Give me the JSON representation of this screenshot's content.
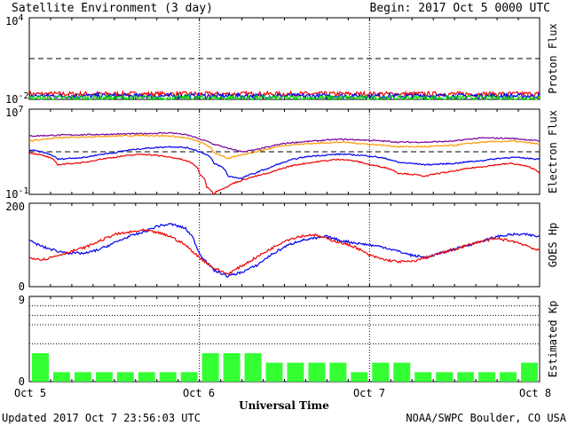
{
  "header": {
    "title": "Satellite Environment (3 day)",
    "begin": "Begin:  2017 Oct 5 0000 UTC"
  },
  "footer": {
    "updated": "Updated 2017 Oct  7 23:56:03 UTC",
    "credit": "NOAA/SWPC Boulder, CO USA",
    "xlabel": "Universal Time"
  },
  "x_ticks": [
    "Oct 5",
    "Oct 6",
    "Oct 7",
    "Oct 8"
  ],
  "colors": {
    "red": "#ee0000",
    "blue": "#0000ee",
    "green": "#00dd00",
    "purple": "#770099",
    "orange": "#ff9900",
    "kp_bar": "#33ff33"
  },
  "chart_data": [
    {
      "type": "line",
      "name": "proton",
      "ylabel": "Proton Flux",
      "scale": "log",
      "ylim": [
        0.01,
        10000
      ],
      "ytick_labels": [
        {
          "base": "10",
          "exp": "4",
          "value": 10000
        },
        {
          "base": "10",
          "exp": "-2",
          "value": 0.01
        }
      ],
      "threshold": 10,
      "series": [
        {
          "color": "red",
          "x": [
            0,
            72
          ],
          "y": [
            0.025,
            0.025
          ]
        },
        {
          "color": "blue",
          "x": [
            0,
            72
          ],
          "y": [
            0.018,
            0.018
          ]
        },
        {
          "color": "green",
          "x": [
            0,
            72
          ],
          "y": [
            0.013,
            0.013
          ]
        }
      ]
    },
    {
      "type": "line",
      "name": "electron",
      "ylabel": "Electron Flux",
      "scale": "log",
      "ylim": [
        0.1,
        10000000
      ],
      "ytick_labels": [
        {
          "base": "10",
          "exp": "7",
          "value": 10000000
        },
        {
          "base": "10",
          "exp": "-1",
          "value": 0.1
        }
      ],
      "threshold": 1000,
      "series": [
        {
          "color": "purple",
          "x": [
            0,
            4,
            8,
            12,
            16,
            20,
            22,
            24,
            26,
            28,
            30,
            32,
            34,
            36,
            40,
            44,
            48,
            52,
            56,
            60,
            64,
            68,
            72
          ],
          "y": [
            30000,
            36000,
            40000,
            45000,
            50000,
            60000,
            40000,
            15000,
            5000,
            2000,
            1000,
            1500,
            3000,
            6000,
            10000,
            15000,
            12000,
            8000,
            8000,
            10000,
            20000,
            18000,
            10000
          ]
        },
        {
          "color": "orange",
          "x": [
            0,
            4,
            8,
            12,
            16,
            20,
            22,
            24,
            26,
            28,
            30,
            32,
            34,
            36,
            40,
            44,
            48,
            52,
            56,
            60,
            64,
            68,
            72
          ],
          "y": [
            10000,
            20000,
            25000,
            30000,
            35000,
            30000,
            20000,
            8000,
            800,
            200,
            500,
            1000,
            2000,
            4000,
            6000,
            8000,
            5000,
            3000,
            3000,
            4000,
            8000,
            10000,
            5000
          ]
        },
        {
          "color": "blue",
          "x": [
            0,
            4,
            8,
            12,
            16,
            20,
            22,
            24,
            26,
            28,
            30,
            32,
            34,
            36,
            40,
            44,
            48,
            52,
            56,
            60,
            64,
            68,
            72
          ],
          "y": [
            1500,
            200,
            300,
            800,
            2000,
            3000,
            2500,
            1000,
            80,
            5,
            3,
            10,
            30,
            100,
            400,
            600,
            400,
            100,
            60,
            80,
            150,
            300,
            200
          ]
        },
        {
          "color": "red",
          "x": [
            0,
            4,
            8,
            12,
            16,
            20,
            22,
            24,
            25,
            26,
            28,
            30,
            32,
            34,
            36,
            40,
            44,
            48,
            52,
            56,
            60,
            64,
            68,
            72
          ],
          "y": [
            800,
            60,
            100,
            300,
            600,
            300,
            150,
            8,
            0.5,
            0.1,
            0.5,
            2,
            5,
            10,
            30,
            100,
            200,
            60,
            10,
            5,
            15,
            40,
            80,
            10
          ]
        }
      ]
    },
    {
      "type": "line",
      "name": "goes_hp",
      "ylabel": "GOES Hp",
      "scale": "linear",
      "ylim": [
        0,
        200
      ],
      "ytick_labels": [
        {
          "base": "200",
          "value": 200
        },
        {
          "base": "0",
          "value": 0
        }
      ],
      "series": [
        {
          "color": "blue",
          "x": [
            0,
            2,
            4,
            6,
            8,
            10,
            12,
            14,
            16,
            18,
            20,
            22,
            23,
            24,
            26,
            28,
            30,
            32,
            34,
            36,
            38,
            40,
            42,
            44,
            46,
            48,
            50,
            52,
            54,
            56,
            58,
            60,
            62,
            64,
            66,
            68,
            70,
            72
          ],
          "y": [
            110,
            95,
            85,
            80,
            80,
            90,
            105,
            120,
            130,
            145,
            150,
            140,
            120,
            80,
            40,
            25,
            35,
            50,
            75,
            95,
            110,
            115,
            120,
            110,
            105,
            100,
            95,
            85,
            75,
            70,
            80,
            90,
            100,
            110,
            120,
            125,
            125,
            120
          ]
        },
        {
          "color": "red",
          "x": [
            0,
            2,
            4,
            6,
            8,
            10,
            12,
            14,
            16,
            18,
            20,
            22,
            23,
            24,
            26,
            28,
            30,
            32,
            34,
            36,
            38,
            40,
            42,
            44,
            46,
            48,
            50,
            52,
            54,
            56,
            58,
            60,
            62,
            64,
            66,
            68,
            70,
            72
          ],
          "y": [
            70,
            65,
            75,
            85,
            95,
            110,
            125,
            130,
            135,
            130,
            120,
            100,
            85,
            70,
            45,
            30,
            50,
            70,
            90,
            110,
            120,
            125,
            115,
            105,
            95,
            75,
            65,
            60,
            60,
            70,
            80,
            90,
            100,
            110,
            115,
            110,
            100,
            85
          ]
        }
      ]
    },
    {
      "type": "bar",
      "name": "kp",
      "ylabel": "Estimated Kp",
      "ylim": [
        0,
        9
      ],
      "ytick_labels": [
        {
          "base": "9",
          "value": 9
        },
        {
          "base": "0",
          "value": 0
        }
      ],
      "dotted_levels": [
        4,
        6,
        7,
        8
      ],
      "bar_hours": 3,
      "values": [
        3,
        1,
        1,
        1,
        1,
        1,
        1,
        1,
        3,
        3,
        3,
        2,
        2,
        2,
        2,
        1,
        2,
        2,
        1,
        1,
        1,
        1,
        1,
        2
      ]
    }
  ]
}
